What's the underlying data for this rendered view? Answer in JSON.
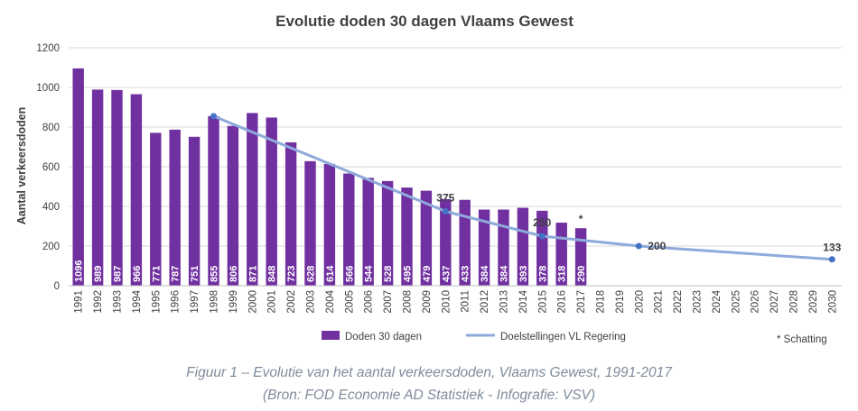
{
  "chart_data": {
    "type": "bar",
    "title": "Evolutie doden 30 dagen Vlaams Gewest",
    "ylabel": "Aantal verkeersdoden",
    "ylim": [
      0,
      1200
    ],
    "yticks": [
      0,
      200,
      400,
      600,
      800,
      1000,
      1200
    ],
    "categories": [
      "1991",
      "1992",
      "1993",
      "1994",
      "1995",
      "1996",
      "1997",
      "1998",
      "1999",
      "2000",
      "2001",
      "2002",
      "2003",
      "2004",
      "2005",
      "2006",
      "2007",
      "2008",
      "2009",
      "2010",
      "2011",
      "2012",
      "2013",
      "2014",
      "2015",
      "2016",
      "2017",
      "2018",
      "2019",
      "2020",
      "2021",
      "2022",
      "2023",
      "2024",
      "2025",
      "2026",
      "2027",
      "2028",
      "2029",
      "2030"
    ],
    "series": [
      {
        "name": "Doden 30 dagen",
        "kind": "bar",
        "color": "#7030a0",
        "values": [
          1096,
          989,
          987,
          966,
          771,
          787,
          751,
          855,
          806,
          871,
          848,
          723,
          628,
          614,
          566,
          544,
          528,
          495,
          479,
          437,
          433,
          384,
          384,
          393,
          378,
          318,
          290,
          null,
          null,
          null,
          null,
          null,
          null,
          null,
          null,
          null,
          null,
          null,
          null,
          null
        ]
      },
      {
        "name": "Doelstellingen VL Regering",
        "kind": "line",
        "color": "#8eaadb",
        "marker_color": "#4472c4",
        "points": [
          {
            "x": "1998",
            "y": 855
          },
          {
            "x": "2010",
            "y": 375,
            "label": "375"
          },
          {
            "x": "2015",
            "y": 250,
            "label": "250"
          },
          {
            "x": "2020",
            "y": 200,
            "label": "200"
          },
          {
            "x": "2030",
            "y": 133,
            "label": "133"
          }
        ]
      }
    ],
    "estimate_marker": {
      "x": "2017",
      "symbol": "*"
    },
    "grid": "horizontal",
    "legend": {
      "placement": "bottom",
      "note": "* Schatting"
    }
  },
  "caption": {
    "line1": "Figuur 1 – Evolutie van het aantal verkeersdoden, Vlaams Gewest, 1991-2017",
    "line2": "(Bron: FOD Economie AD Statistiek - Infografie: VSV)"
  }
}
